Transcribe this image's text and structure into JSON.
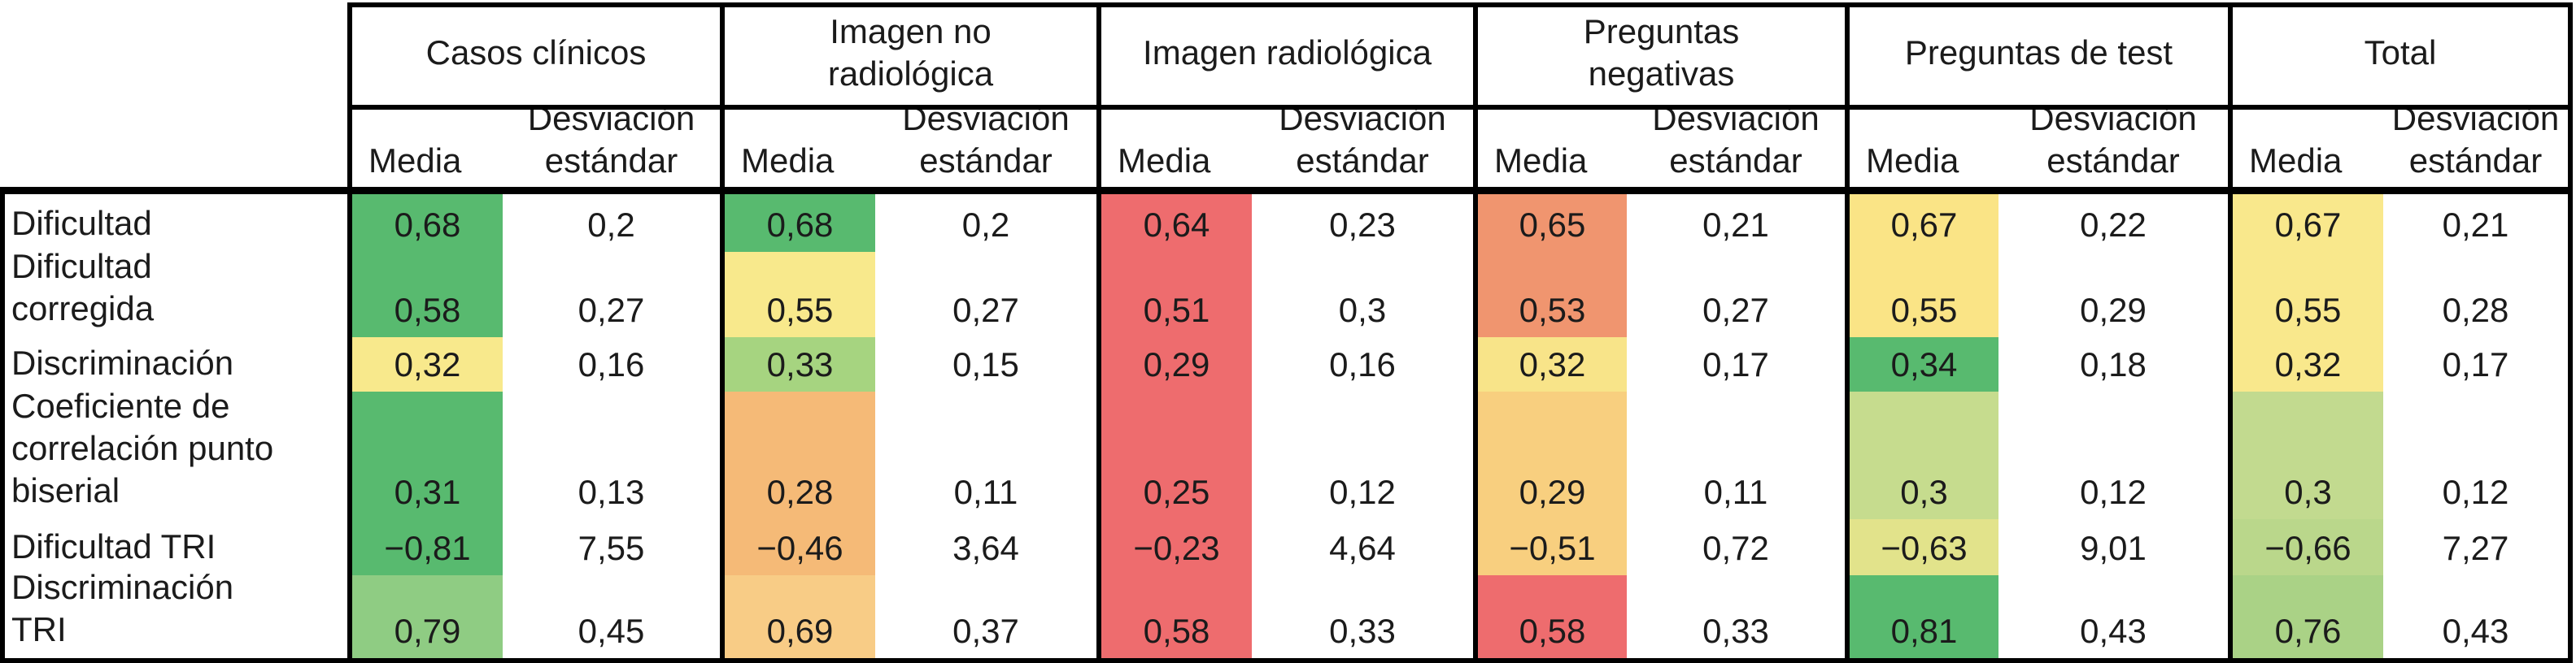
{
  "columns": {
    "media_label": "Media",
    "std_label": "Desviación\nestándar"
  },
  "rows": [
    "Dificultad",
    "Dificultad\ncorregida",
    "Discriminación",
    "Coeficiente de\ncorrelación punto\nbiserial",
    "Dificultad TRI",
    "Discriminación\nTRI"
  ],
  "groups": [
    {
      "label": "Casos clínicos",
      "cells": [
        {
          "media": "0,68",
          "std": "0,2",
          "bg": "#58ba6f"
        },
        {
          "media": "0,58",
          "std": "0,27",
          "bg": "#58ba6f"
        },
        {
          "media": "0,32",
          "std": "0,16",
          "bg": "#f8e98c"
        },
        {
          "media": "0,31",
          "std": "0,13",
          "bg": "#58ba6f"
        },
        {
          "media": "−0,81",
          "std": "7,55",
          "bg": "#58ba6f"
        },
        {
          "media": "0,79",
          "std": "0,45",
          "bg": "#8fcc83"
        }
      ]
    },
    {
      "label": "Imagen no\nradiológica",
      "cells": [
        {
          "media": "0,68",
          "std": "0,2",
          "bg": "#58ba6f"
        },
        {
          "media": "0,55",
          "std": "0,27",
          "bg": "#f8e98c"
        },
        {
          "media": "0,33",
          "std": "0,15",
          "bg": "#a6d480"
        },
        {
          "media": "0,28",
          "std": "0,11",
          "bg": "#f5ba77"
        },
        {
          "media": "−0,46",
          "std": "3,64",
          "bg": "#f5ba77"
        },
        {
          "media": "0,69",
          "std": "0,37",
          "bg": "#f8cc86"
        }
      ]
    },
    {
      "label": "Imagen radiológica",
      "cells": [
        {
          "media": "0,64",
          "std": "0,23",
          "bg": "#ee6c6e"
        },
        {
          "media": "0,51",
          "std": "0,3",
          "bg": "#ee6c6e"
        },
        {
          "media": "0,29",
          "std": "0,16",
          "bg": "#ee6c6e"
        },
        {
          "media": "0,25",
          "std": "0,12",
          "bg": "#ee6c6e"
        },
        {
          "media": "−0,23",
          "std": "4,64",
          "bg": "#ee6c6e"
        },
        {
          "media": "0,58",
          "std": "0,33",
          "bg": "#ee6c6e"
        }
      ]
    },
    {
      "label": "Preguntas\nnegativas",
      "cells": [
        {
          "media": "0,65",
          "std": "0,21",
          "bg": "#f0956f"
        },
        {
          "media": "0,53",
          "std": "0,27",
          "bg": "#f0956f"
        },
        {
          "media": "0,32",
          "std": "0,17",
          "bg": "#f8e489"
        },
        {
          "media": "0,29",
          "std": "0,11",
          "bg": "#f8cf7f"
        },
        {
          "media": "−0,51",
          "std": "0,72",
          "bg": "#f8cf7f"
        },
        {
          "media": "0,58",
          "std": "0,33",
          "bg": "#ee6c6e"
        }
      ]
    },
    {
      "label": "Preguntas de test",
      "cells": [
        {
          "media": "0,67",
          "std": "0,22",
          "bg": "#fae486"
        },
        {
          "media": "0,55",
          "std": "0,29",
          "bg": "#fae486"
        },
        {
          "media": "0,34",
          "std": "0,18",
          "bg": "#58ba6f"
        },
        {
          "media": "0,3",
          "std": "0,12",
          "bg": "#c6dc8e"
        },
        {
          "media": "−0,63",
          "std": "9,01",
          "bg": "#e2e38b"
        },
        {
          "media": "0,81",
          "std": "0,43",
          "bg": "#58ba6f"
        }
      ]
    },
    {
      "label": "Total",
      "cells": [
        {
          "media": "0,67",
          "std": "0,21",
          "bg": "#f9e88c"
        },
        {
          "media": "0,55",
          "std": "0,28",
          "bg": "#f9e88c"
        },
        {
          "media": "0,32",
          "std": "0,17",
          "bg": "#f9e88c"
        },
        {
          "media": "0,3",
          "std": "0,12",
          "bg": "#c2da8f"
        },
        {
          "media": "−0,66",
          "std": "7,27",
          "bg": "#bad78b"
        },
        {
          "media": "0,76",
          "std": "0,43",
          "bg": "#aad286"
        }
      ]
    }
  ],
  "chart_data": {
    "type": "table",
    "row_labels": [
      "Dificultad",
      "Dificultad corregida",
      "Discriminación",
      "Coeficiente de correlación punto biserial",
      "Dificultad TRI",
      "Discriminación TRI"
    ],
    "column_groups": [
      "Casos clínicos",
      "Imagen no radiológica",
      "Imagen radiológica",
      "Preguntas negativas",
      "Preguntas de test",
      "Total"
    ],
    "subcolumns": [
      "Media",
      "Desviación estándar"
    ],
    "series": [
      {
        "name": "Casos clínicos",
        "media": [
          0.68,
          0.58,
          0.32,
          0.31,
          -0.81,
          0.79
        ],
        "desviacion_estandar": [
          0.2,
          0.27,
          0.16,
          0.13,
          7.55,
          0.45
        ]
      },
      {
        "name": "Imagen no radiológica",
        "media": [
          0.68,
          0.55,
          0.33,
          0.28,
          -0.46,
          0.69
        ],
        "desviacion_estandar": [
          0.2,
          0.27,
          0.15,
          0.11,
          3.64,
          0.37
        ]
      },
      {
        "name": "Imagen radiológica",
        "media": [
          0.64,
          0.51,
          0.29,
          0.25,
          -0.23,
          0.58
        ],
        "desviacion_estandar": [
          0.23,
          0.3,
          0.16,
          0.12,
          4.64,
          0.33
        ]
      },
      {
        "name": "Preguntas negativas",
        "media": [
          0.65,
          0.53,
          0.32,
          0.29,
          -0.51,
          0.58
        ],
        "desviacion_estandar": [
          0.21,
          0.27,
          0.17,
          0.11,
          0.72,
          0.33
        ]
      },
      {
        "name": "Preguntas de test",
        "media": [
          0.67,
          0.55,
          0.34,
          0.3,
          -0.63,
          0.81
        ],
        "desviacion_estandar": [
          0.22,
          0.29,
          0.18,
          0.12,
          9.01,
          0.43
        ]
      },
      {
        "name": "Total",
        "media": [
          0.67,
          0.55,
          0.32,
          0.3,
          -0.66,
          0.76
        ],
        "desviacion_estandar": [
          0.21,
          0.28,
          0.17,
          0.12,
          7.27,
          0.43
        ]
      }
    ],
    "layout": "media columns have green-yellow-red heatmap backgrounds; desviación estándar columns are white",
    "heatmap_colors": {
      "good": "#58ba6f",
      "mid": "#f8e98c",
      "warn": "#f5ba77",
      "bad": "#ee6c6e"
    }
  }
}
